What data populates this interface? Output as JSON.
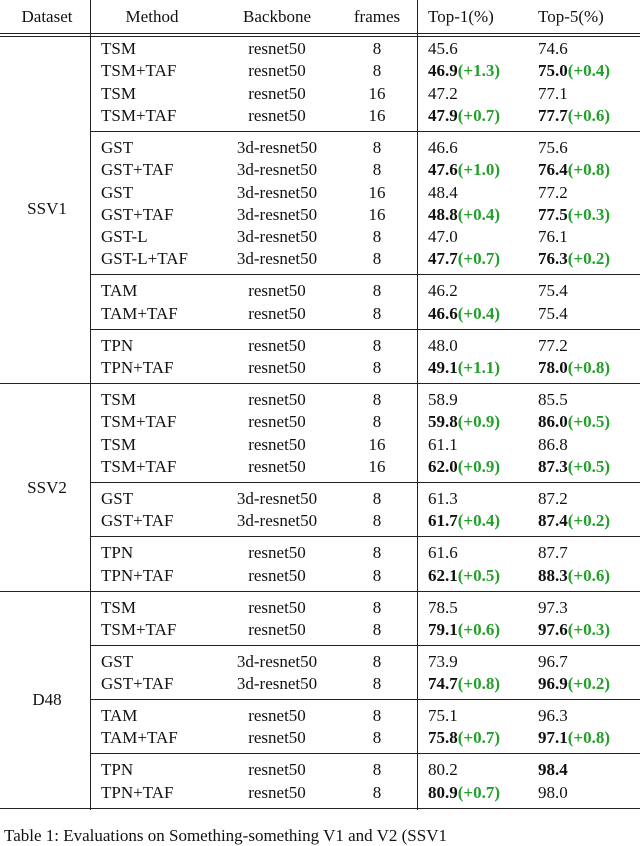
{
  "table": {
    "header": [
      "Dataset",
      "Method",
      "Backbone",
      "frames",
      "Top-1(%)",
      "Top-5(%)"
    ],
    "datasets": [
      {
        "name": "SSV1",
        "groups": [
          [
            {
              "method": "TSM",
              "backbone": "resnet50",
              "frames": "8",
              "top1": {
                "text": "45.6"
              },
              "top5": {
                "text": "74.6"
              }
            },
            {
              "method": "TSM+TAF",
              "backbone": "resnet50",
              "frames": "8",
              "top1": {
                "text": "46.9",
                "gain": "(+1.3)",
                "bold": true
              },
              "top5": {
                "text": "75.0",
                "gain": "(+0.4)",
                "bold": true
              }
            },
            {
              "method": "TSM",
              "backbone": "resnet50",
              "frames": "16",
              "top1": {
                "text": "47.2"
              },
              "top5": {
                "text": "77.1"
              }
            },
            {
              "method": "TSM+TAF",
              "backbone": "resnet50",
              "frames": "16",
              "top1": {
                "text": "47.9",
                "gain": "(+0.7)",
                "bold": true
              },
              "top5": {
                "text": "77.7",
                "gain": "(+0.6)",
                "bold": true
              }
            }
          ],
          [
            {
              "method": "GST",
              "backbone": "3d-resnet50",
              "frames": "8",
              "top1": {
                "text": "46.6"
              },
              "top5": {
                "text": "75.6"
              }
            },
            {
              "method": "GST+TAF",
              "backbone": "3d-resnet50",
              "frames": "8",
              "top1": {
                "text": "47.6",
                "gain": "(+1.0)",
                "bold": true
              },
              "top5": {
                "text": "76.4",
                "gain": "(+0.8)",
                "bold": true
              }
            },
            {
              "method": "GST",
              "backbone": "3d-resnet50",
              "frames": "16",
              "top1": {
                "text": "48.4"
              },
              "top5": {
                "text": "77.2"
              }
            },
            {
              "method": "GST+TAF",
              "backbone": "3d-resnet50",
              "frames": "16",
              "top1": {
                "text": "48.8",
                "gain": "(+0.4)",
                "bold": true
              },
              "top5": {
                "text": "77.5",
                "gain": "(+0.3)",
                "bold": true
              }
            },
            {
              "method": "GST-L",
              "backbone": "3d-resnet50",
              "frames": "8",
              "top1": {
                "text": "47.0"
              },
              "top5": {
                "text": "76.1"
              }
            },
            {
              "method": "GST-L+TAF",
              "backbone": "3d-resnet50",
              "frames": "8",
              "top1": {
                "text": "47.7",
                "gain": "(+0.7)",
                "bold": true
              },
              "top5": {
                "text": "76.3",
                "gain": "(+0.2)",
                "bold": true
              }
            }
          ],
          [
            {
              "method": "TAM",
              "backbone": "resnet50",
              "frames": "8",
              "top1": {
                "text": "46.2"
              },
              "top5": {
                "text": "75.4"
              }
            },
            {
              "method": "TAM+TAF",
              "backbone": "resnet50",
              "frames": "8",
              "top1": {
                "text": "46.6",
                "gain": "(+0.4)",
                "bold": true
              },
              "top5": {
                "text": "75.4"
              }
            }
          ],
          [
            {
              "method": "TPN",
              "backbone": "resnet50",
              "frames": "8",
              "top1": {
                "text": "48.0"
              },
              "top5": {
                "text": "77.2"
              }
            },
            {
              "method": "TPN+TAF",
              "backbone": "resnet50",
              "frames": "8",
              "top1": {
                "text": "49.1",
                "gain": "(+1.1)",
                "bold": true
              },
              "top5": {
                "text": "78.0",
                "gain": "(+0.8)",
                "bold": true
              }
            }
          ]
        ]
      },
      {
        "name": "SSV2",
        "groups": [
          [
            {
              "method": "TSM",
              "backbone": "resnet50",
              "frames": "8",
              "top1": {
                "text": "58.9"
              },
              "top5": {
                "text": "85.5"
              }
            },
            {
              "method": "TSM+TAF",
              "backbone": "resnet50",
              "frames": "8",
              "top1": {
                "text": "59.8",
                "gain": "(+0.9)",
                "bold": true
              },
              "top5": {
                "text": "86.0",
                "gain": "(+0.5)",
                "bold": true
              }
            },
            {
              "method": "TSM",
              "backbone": "resnet50",
              "frames": "16",
              "top1": {
                "text": "61.1"
              },
              "top5": {
                "text": "86.8"
              }
            },
            {
              "method": "TSM+TAF",
              "backbone": "resnet50",
              "frames": "16",
              "top1": {
                "text": "62.0",
                "gain": "(+0.9)",
                "bold": true
              },
              "top5": {
                "text": "87.3",
                "gain": "(+0.5)",
                "bold": true
              }
            }
          ],
          [
            {
              "method": "GST",
              "backbone": "3d-resnet50",
              "frames": "8",
              "top1": {
                "text": "61.3"
              },
              "top5": {
                "text": "87.2"
              }
            },
            {
              "method": "GST+TAF",
              "backbone": "3d-resnet50",
              "frames": "8",
              "top1": {
                "text": "61.7",
                "gain": "(+0.4)",
                "bold": true
              },
              "top5": {
                "text": "87.4",
                "gain": "(+0.2)",
                "bold": true
              }
            }
          ],
          [
            {
              "method": "TPN",
              "backbone": "resnet50",
              "frames": "8",
              "top1": {
                "text": "61.6"
              },
              "top5": {
                "text": "87.7"
              }
            },
            {
              "method": "TPN+TAF",
              "backbone": "resnet50",
              "frames": "8",
              "top1": {
                "text": "62.1",
                "gain": "(+0.5)",
                "bold": true
              },
              "top5": {
                "text": "88.3",
                "gain": "(+0.6)",
                "bold": true
              }
            }
          ]
        ]
      },
      {
        "name": "D48",
        "groups": [
          [
            {
              "method": "TSM",
              "backbone": "resnet50",
              "frames": "8",
              "top1": {
                "text": "78.5"
              },
              "top5": {
                "text": "97.3"
              }
            },
            {
              "method": "TSM+TAF",
              "backbone": "resnet50",
              "frames": "8",
              "top1": {
                "text": "79.1",
                "gain": "(+0.6)",
                "bold": true
              },
              "top5": {
                "text": "97.6",
                "gain": "(+0.3)",
                "bold": true
              }
            }
          ],
          [
            {
              "method": "GST",
              "backbone": "3d-resnet50",
              "frames": "8",
              "top1": {
                "text": "73.9"
              },
              "top5": {
                "text": "96.7"
              }
            },
            {
              "method": "GST+TAF",
              "backbone": "3d-resnet50",
              "frames": "8",
              "top1": {
                "text": "74.7",
                "gain": "(+0.8)",
                "bold": true
              },
              "top5": {
                "text": "96.9",
                "gain": "(+0.2)",
                "bold": true
              }
            }
          ],
          [
            {
              "method": "TAM",
              "backbone": "resnet50",
              "frames": "8",
              "top1": {
                "text": "75.1"
              },
              "top5": {
                "text": "96.3"
              }
            },
            {
              "method": "TAM+TAF",
              "backbone": "resnet50",
              "frames": "8",
              "top1": {
                "text": "75.8",
                "gain": "(+0.7)",
                "bold": true
              },
              "top5": {
                "text": "97.1",
                "gain": "(+0.8)",
                "bold": true
              }
            }
          ],
          [
            {
              "method": "TPN",
              "backbone": "resnet50",
              "frames": "8",
              "top1": {
                "text": "80.2"
              },
              "top5": {
                "text": "98.4",
                "bold": true
              }
            },
            {
              "method": "TPN+TAF",
              "backbone": "resnet50",
              "frames": "8",
              "top1": {
                "text": "80.9",
                "gain": "(+0.7)",
                "bold": true
              },
              "top5": {
                "text": "98.0"
              }
            }
          ]
        ]
      }
    ],
    "caption": "Table 1:  Evaluations on Something-something V1 and V2 (SSV1"
  }
}
